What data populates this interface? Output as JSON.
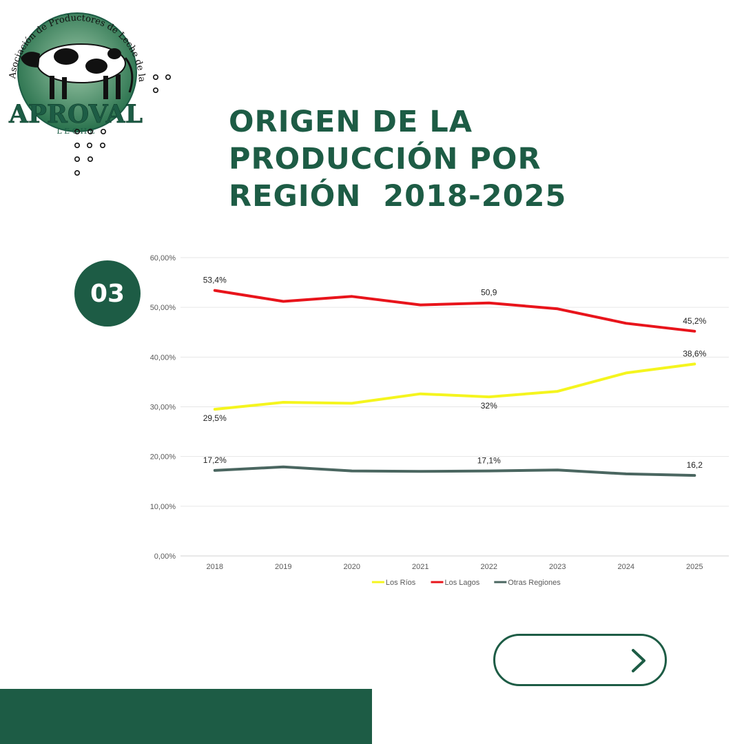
{
  "brand": {
    "name": "APROVAL",
    "sub": "L E C H E",
    "ring_text": "Asociación de Productores de Leche de la Región de Los Ríos",
    "colors": {
      "green": "#1d5c45",
      "logo_green": "#2f7d55"
    }
  },
  "page": {
    "title_lines": [
      "ORIGEN DE LA",
      "PRODUCCIÓN POR",
      "REGIÓN  2018-2025"
    ],
    "badge": "03",
    "next_icon": "chevron-right-icon"
  },
  "chart_data": {
    "type": "line",
    "x": [
      "2018",
      "2019",
      "2020",
      "2021",
      "2022",
      "2023",
      "2024",
      "2025"
    ],
    "ylim": [
      0,
      60
    ],
    "yticks": [
      "0,00%",
      "10,00%",
      "20,00%",
      "30,00%",
      "40,00%",
      "50,00%",
      "60,00%"
    ],
    "grid": true,
    "legend_position": "bottom",
    "series": [
      {
        "name": "Los Ríos",
        "color": "#f5f51e",
        "values": [
          29.5,
          30.9,
          30.7,
          32.6,
          32.0,
          33.1,
          36.8,
          38.6
        ]
      },
      {
        "name": "Los Lagos",
        "color": "#e8141b",
        "values": [
          53.4,
          51.2,
          52.2,
          50.5,
          50.9,
          49.7,
          46.8,
          45.2
        ]
      },
      {
        "name": "Otras Regiones",
        "color": "#4a6660",
        "values": [
          17.2,
          17.9,
          17.1,
          17.0,
          17.1,
          17.3,
          16.5,
          16.2
        ]
      }
    ],
    "annotations": [
      {
        "series": 1,
        "index": 0,
        "text": "53,4%",
        "pos": "above"
      },
      {
        "series": 1,
        "index": 4,
        "text": "50,9",
        "pos": "above"
      },
      {
        "series": 1,
        "index": 7,
        "text": "45,2%",
        "pos": "above"
      },
      {
        "series": 0,
        "index": 0,
        "text": "29,5%",
        "pos": "below"
      },
      {
        "series": 0,
        "index": 4,
        "text": "32%",
        "pos": "below"
      },
      {
        "series": 0,
        "index": 7,
        "text": "38,6%",
        "pos": "above"
      },
      {
        "series": 2,
        "index": 0,
        "text": "17,2%",
        "pos": "above"
      },
      {
        "series": 2,
        "index": 4,
        "text": "17,1%",
        "pos": "above"
      },
      {
        "series": 2,
        "index": 7,
        "text": "16,2",
        "pos": "above"
      }
    ]
  }
}
